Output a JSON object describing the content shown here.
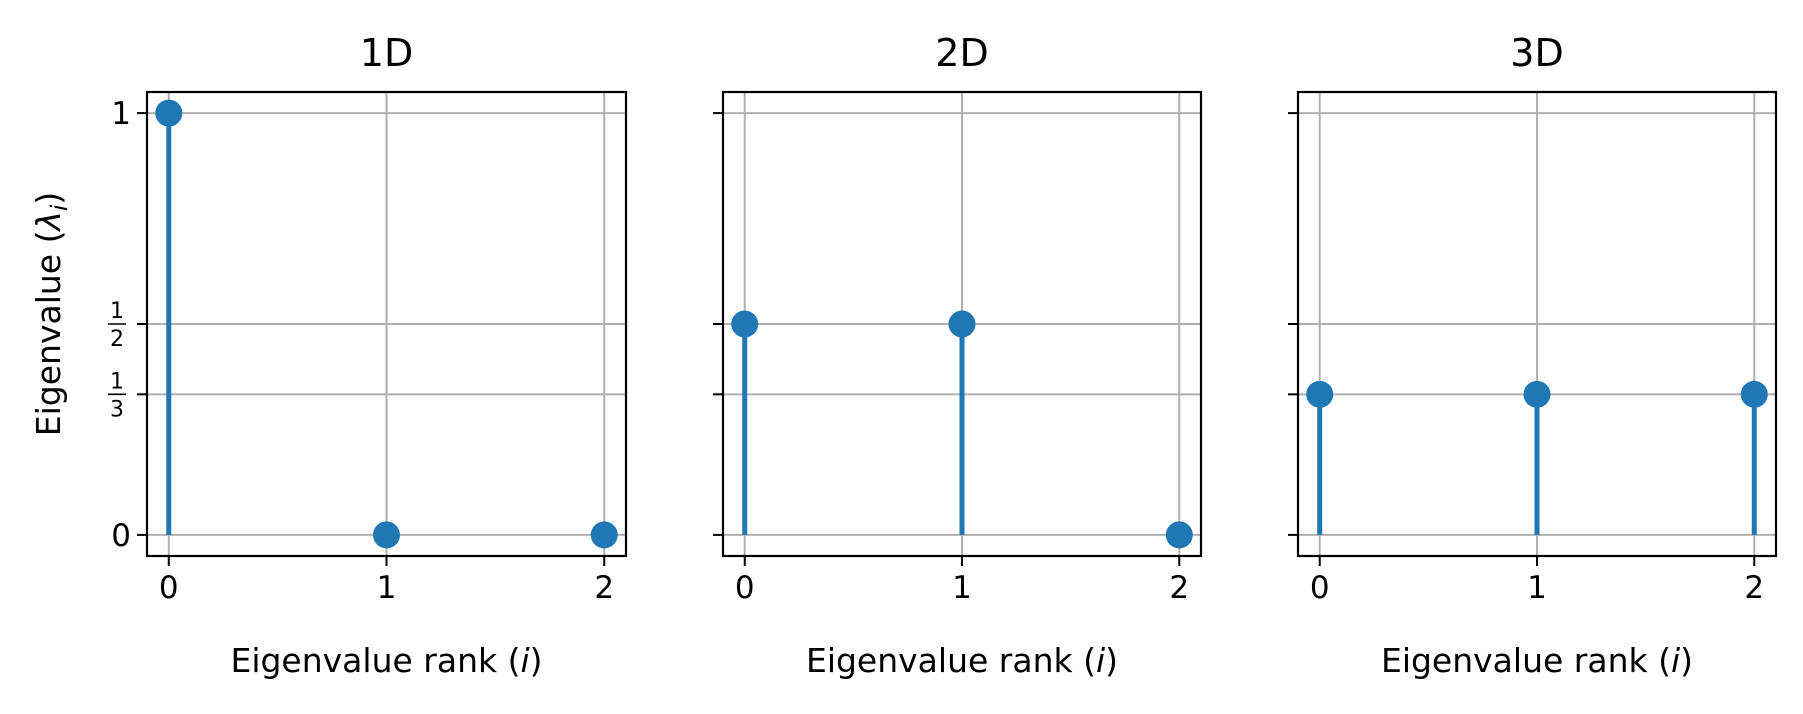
{
  "chart_data": [
    {
      "type": "stem",
      "title": "1D",
      "xlabel": "Eigenvalue rank (i)",
      "ylabel": "Eigenvalue (λi)",
      "x": [
        0,
        1,
        2
      ],
      "values": [
        1,
        0,
        0
      ],
      "xticks": [
        "0",
        "1",
        "2"
      ],
      "yticks": [
        {
          "value": 0,
          "label": "0"
        },
        {
          "value": 0.3333,
          "label": "1/3"
        },
        {
          "value": 0.5,
          "label": "1/2"
        },
        {
          "value": 1,
          "label": "1"
        }
      ],
      "xlim": [
        -0.1,
        2.1
      ],
      "ylim": [
        -0.05,
        1.05
      ],
      "grid": true,
      "color": "#1f77b4"
    },
    {
      "type": "stem",
      "title": "2D",
      "xlabel": "Eigenvalue rank (i)",
      "x": [
        0,
        1,
        2
      ],
      "values": [
        0.5,
        0.5,
        0
      ],
      "xticks": [
        "0",
        "1",
        "2"
      ],
      "xlim": [
        -0.1,
        2.1
      ],
      "ylim": [
        -0.05,
        1.05
      ],
      "grid": true,
      "color": "#1f77b4"
    },
    {
      "type": "stem",
      "title": "3D",
      "xlabel": "Eigenvalue rank (i)",
      "x": [
        0,
        1,
        2
      ],
      "values": [
        0.3333,
        0.3333,
        0.3333
      ],
      "xticks": [
        "0",
        "1",
        "2"
      ],
      "xlim": [
        -0.1,
        2.1
      ],
      "ylim": [
        -0.05,
        1.05
      ],
      "grid": true,
      "color": "#1f77b4"
    }
  ]
}
